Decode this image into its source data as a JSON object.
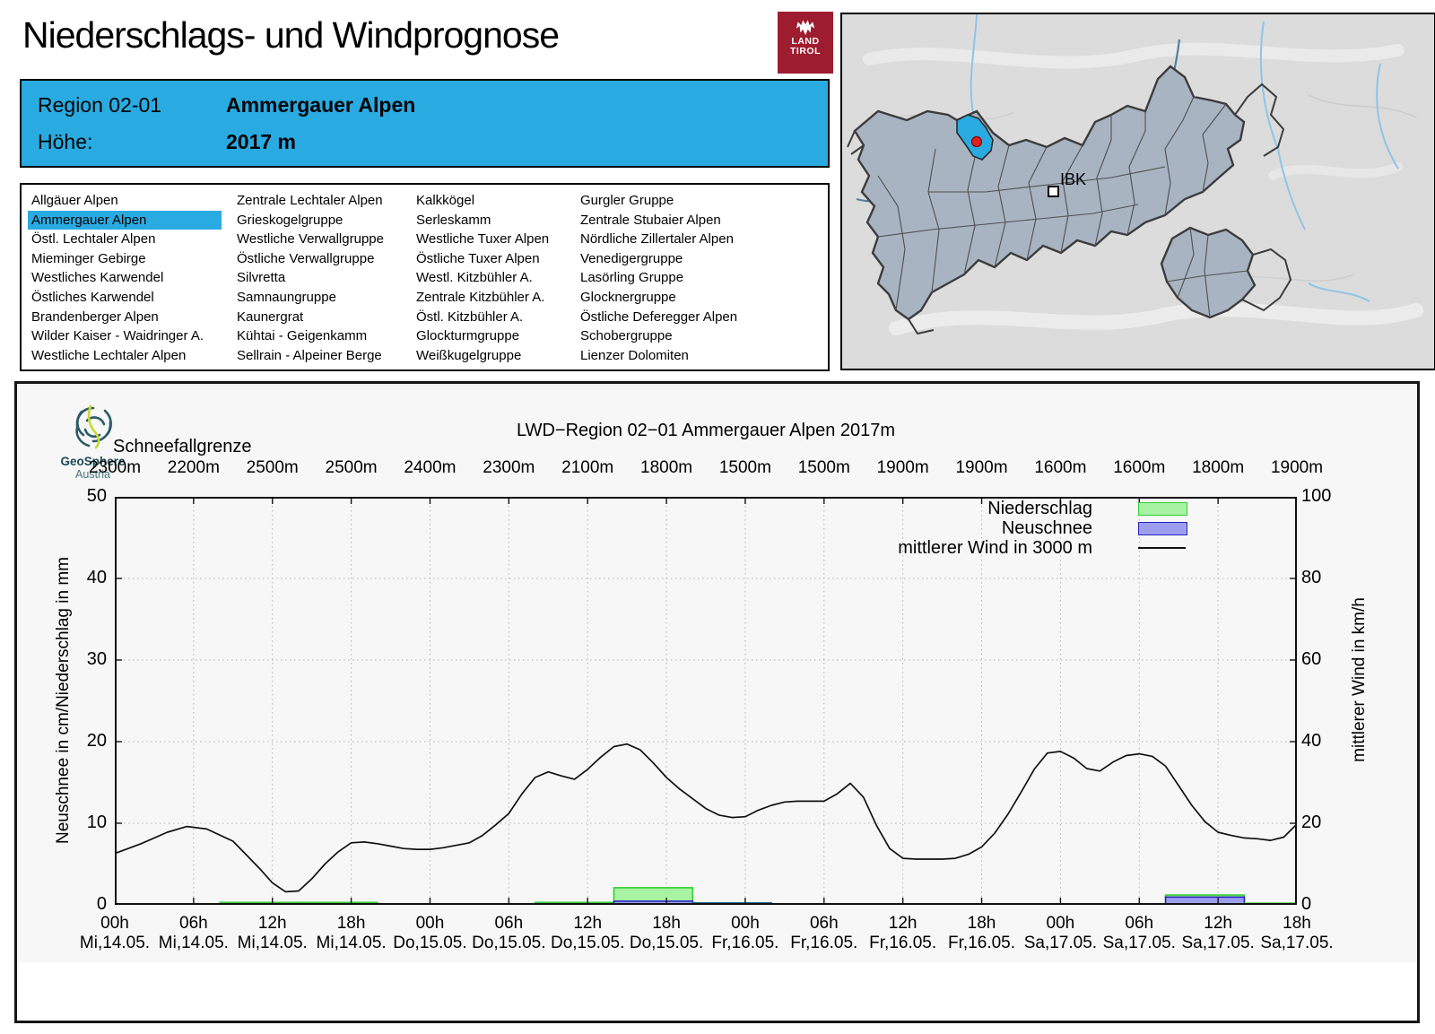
{
  "header": {
    "title": "Niederschlags- und Windprognose",
    "logo": {
      "line1": "LAND",
      "line2": "TIROL"
    }
  },
  "info_box": {
    "region_label": "Region 02-01",
    "region_name": "Ammergauer Alpen",
    "elevation_label": "Höhe:",
    "elevation_value": "2017 m"
  },
  "region_list": {
    "selected": "Ammergauer Alpen",
    "columns": [
      [
        "Allgäuer Alpen",
        "Ammergauer Alpen",
        "Östl. Lechtaler Alpen",
        "Mieminger Gebirge",
        "Westliches Karwendel",
        "Östliches Karwendel",
        "Brandenberger Alpen",
        "Wilder Kaiser - Waidringer A.",
        "Westliche Lechtaler Alpen"
      ],
      [
        "Zentrale Lechtaler Alpen",
        "Grieskogelgruppe",
        "Westliche Verwallgruppe",
        "Östliche Verwallgruppe",
        "Silvretta",
        "Samnaungruppe",
        "Kaunergrat",
        "Kühtai - Geigenkamm",
        "Sellrain - Alpeiner Berge"
      ],
      [
        "Kalkkögel",
        "Serleskamm",
        "Westliche Tuxer Alpen",
        "Östliche Tuxer Alpen",
        "Westl. Kitzbühler A.",
        "Zentrale Kitzbühler A.",
        "Östl. Kitzbühler A.",
        "Glockturmgruppe",
        "Weißkugelgruppe"
      ],
      [
        "Gurgler Gruppe",
        "Zentrale Stubaier Alpen",
        "Nördliche Zillertaler Alpen",
        "Venedigergruppe",
        "Lasörling Gruppe",
        "Glocknergruppe",
        "Östliche Deferegger Alpen",
        "Schobergruppe",
        "Lienzer Dolomiten"
      ]
    ]
  },
  "map": {
    "city_label": "IBK",
    "highlight_color": "#29abe2"
  },
  "chart": {
    "title": "LWD−Region 02−01 Ammergauer Alpen 2017m",
    "snowline_label": "Schneefallgrenze",
    "snowline_values": [
      "2300m",
      "2200m",
      "2500m",
      "2500m",
      "2400m",
      "2300m",
      "2100m",
      "1800m",
      "1500m",
      "1500m",
      "1900m",
      "1900m",
      "1600m",
      "1600m",
      "1800m",
      "1900m"
    ],
    "y_left_label": "Neuschnee in cm/Niederschlag in mm",
    "y_right_label": "mittlerer Wind in km/h",
    "y_left_ticks": [
      0,
      10,
      20,
      30,
      40,
      50
    ],
    "y_right_ticks": [
      0,
      20,
      40,
      60,
      80,
      100
    ],
    "x_ticks": [
      {
        "t": "00h",
        "d": "Mi,14.05."
      },
      {
        "t": "06h",
        "d": "Mi,14.05."
      },
      {
        "t": "12h",
        "d": "Mi,14.05."
      },
      {
        "t": "18h",
        "d": "Mi,14.05."
      },
      {
        "t": "00h",
        "d": "Do,15.05."
      },
      {
        "t": "06h",
        "d": "Do,15.05."
      },
      {
        "t": "12h",
        "d": "Do,15.05."
      },
      {
        "t": "18h",
        "d": "Do,15.05."
      },
      {
        "t": "00h",
        "d": "Fr,16.05."
      },
      {
        "t": "06h",
        "d": "Fr,16.05."
      },
      {
        "t": "12h",
        "d": "Fr,16.05."
      },
      {
        "t": "18h",
        "d": "Fr,16.05."
      },
      {
        "t": "00h",
        "d": "Sa,17.05."
      },
      {
        "t": "06h",
        "d": "Sa,17.05."
      },
      {
        "t": "12h",
        "d": "Sa,17.05."
      },
      {
        "t": "18h",
        "d": "Sa,17.05."
      }
    ],
    "legend": [
      {
        "label": "Niederschlag",
        "swatch": "#a8f2a3",
        "border": "#33cc33"
      },
      {
        "label": "Neuschnee",
        "swatch": "#9e9ef0",
        "border": "#2525bb"
      },
      {
        "label": "mittlerer Wind in 3000 m",
        "type": "line"
      }
    ],
    "logo": {
      "name": "GeoSphere",
      "sub": "Austria"
    }
  },
  "chart_data": {
    "type": "mixed",
    "title": "LWD−Region 02−01 Ammergauer Alpen 2017m",
    "xlim_hours": [
      0,
      90
    ],
    "x_tick_interval_h": 6,
    "ylim_left": [
      0,
      50
    ],
    "ylim_right": [
      0,
      100
    ],
    "grid": true,
    "snowfall_line_m": [
      2300,
      2200,
      2500,
      2500,
      2400,
      2300,
      2100,
      1800,
      1500,
      1500,
      1900,
      1900,
      1600,
      1600,
      1800,
      1900
    ],
    "bars": [
      {
        "from_h": 8,
        "to_h": 14,
        "niederschlag_mm": 0.3,
        "neuschnee_cm": 0
      },
      {
        "from_h": 14,
        "to_h": 20,
        "niederschlag_mm": 0.3,
        "neuschnee_cm": 0
      },
      {
        "from_h": 32,
        "to_h": 38,
        "niederschlag_mm": 0.3,
        "neuschnee_cm": 0
      },
      {
        "from_h": 38,
        "to_h": 44,
        "niederschlag_mm": 2.1,
        "neuschnee_cm": 0.45
      },
      {
        "from_h": 44,
        "to_h": 50,
        "niederschlag_mm": 0.25,
        "neuschnee_cm": 0.2
      },
      {
        "from_h": 80,
        "to_h": 86,
        "niederschlag_mm": 1.2,
        "neuschnee_cm": 0.95
      },
      {
        "from_h": 86,
        "to_h": 90,
        "niederschlag_mm": 0.2,
        "neuschnee_cm": 0.12
      }
    ],
    "wind_series": {
      "name": "mittlerer Wind in 3000 m",
      "unit": "km/h",
      "points": [
        [
          0,
          12.6
        ],
        [
          2,
          15.0
        ],
        [
          4,
          17.8
        ],
        [
          5.5,
          19.2
        ],
        [
          7,
          18.6
        ],
        [
          9,
          15.6
        ],
        [
          11,
          9.0
        ],
        [
          12,
          5.4
        ],
        [
          13,
          3.2
        ],
        [
          14,
          3.4
        ],
        [
          15,
          6.4
        ],
        [
          16,
          10.0
        ],
        [
          17,
          13.0
        ],
        [
          18,
          15.2
        ],
        [
          19,
          15.4
        ],
        [
          20,
          15.0
        ],
        [
          21,
          14.4
        ],
        [
          22,
          13.8
        ],
        [
          23,
          13.6
        ],
        [
          24,
          13.6
        ],
        [
          25,
          14.0
        ],
        [
          26,
          14.6
        ],
        [
          27,
          15.2
        ],
        [
          28,
          17.0
        ],
        [
          29,
          19.6
        ],
        [
          30,
          22.4
        ],
        [
          31,
          27.2
        ],
        [
          32,
          31.2
        ],
        [
          33,
          32.6
        ],
        [
          34,
          31.6
        ],
        [
          35,
          30.8
        ],
        [
          36,
          33.2
        ],
        [
          37,
          36.2
        ],
        [
          38,
          38.8
        ],
        [
          39,
          39.4
        ],
        [
          40,
          38.0
        ],
        [
          41,
          34.8
        ],
        [
          42,
          31.2
        ],
        [
          43,
          28.4
        ],
        [
          44,
          26.0
        ],
        [
          45,
          23.6
        ],
        [
          46,
          22.0
        ],
        [
          47,
          21.4
        ],
        [
          48,
          21.6
        ],
        [
          49,
          23.2
        ],
        [
          50,
          24.4
        ],
        [
          51,
          25.2
        ],
        [
          52,
          25.4
        ],
        [
          53,
          25.4
        ],
        [
          54,
          25.4
        ],
        [
          55,
          27.2
        ],
        [
          56,
          29.8
        ],
        [
          57,
          26.4
        ],
        [
          58,
          19.4
        ],
        [
          59,
          13.8
        ],
        [
          60,
          11.4
        ],
        [
          61,
          11.2
        ],
        [
          62,
          11.2
        ],
        [
          63,
          11.2
        ],
        [
          64,
          11.4
        ],
        [
          65,
          12.4
        ],
        [
          66,
          14.2
        ],
        [
          67,
          17.6
        ],
        [
          68,
          22.2
        ],
        [
          69,
          27.6
        ],
        [
          70,
          33.2
        ],
        [
          71,
          37.2
        ],
        [
          72,
          37.6
        ],
        [
          73,
          36.0
        ],
        [
          74,
          33.4
        ],
        [
          75,
          32.8
        ],
        [
          76,
          35.0
        ],
        [
          77,
          36.6
        ],
        [
          78,
          37.0
        ],
        [
          79,
          36.4
        ],
        [
          80,
          34.0
        ],
        [
          81,
          29.2
        ],
        [
          82,
          24.4
        ],
        [
          83,
          20.4
        ],
        [
          84,
          17.8
        ],
        [
          85,
          17.0
        ],
        [
          86,
          16.4
        ],
        [
          87,
          16.2
        ],
        [
          88,
          15.8
        ],
        [
          89,
          16.6
        ],
        [
          90,
          19.8
        ]
      ]
    }
  }
}
